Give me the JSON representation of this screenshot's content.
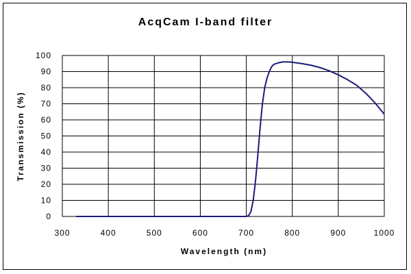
{
  "chart_data": {
    "type": "line",
    "title": "AcqCam I-band filter",
    "xlabel": "Wavelength (nm)",
    "ylabel": "Transmission (%)",
    "xlim": [
      300,
      1000
    ],
    "ylim": [
      0,
      100
    ],
    "xticks": [
      300,
      400,
      500,
      600,
      700,
      800,
      900,
      1000
    ],
    "yticks": [
      0,
      10,
      20,
      30,
      40,
      50,
      60,
      70,
      80,
      90,
      100
    ],
    "grid": true,
    "legend": "none",
    "line_color": "#1a1a7a",
    "series": [
      {
        "x": [
          330,
          400,
          500,
          600,
          690,
          700,
          705,
          710,
          715,
          720,
          725,
          730,
          735,
          740,
          745,
          750,
          755,
          760,
          770,
          780,
          790,
          800,
          820,
          840,
          860,
          880,
          900,
          920,
          940,
          960,
          980,
          1000
        ],
        "values": [
          0,
          0,
          0,
          0,
          0,
          0,
          0.5,
          3,
          10,
          22,
          38,
          55,
          70,
          80,
          86,
          90,
          93,
          94.5,
          95.5,
          96,
          96,
          95.8,
          95,
          94,
          92.5,
          90.5,
          88,
          85,
          81.5,
          76.5,
          70.5,
          63.5
        ]
      }
    ]
  }
}
